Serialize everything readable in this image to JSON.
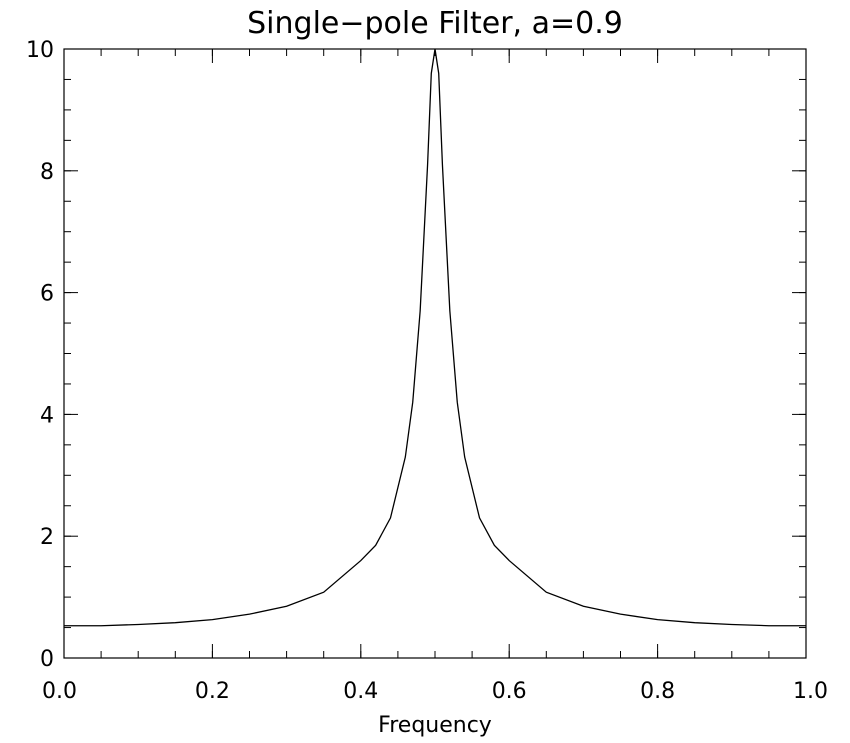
{
  "chart_data": {
    "type": "line",
    "title": "Single−pole Filter, a=0.9",
    "xlabel": "Frequency",
    "ylabel": "",
    "xlim": [
      0.0,
      1.0
    ],
    "ylim": [
      0,
      10
    ],
    "x_ticks": [
      0.0,
      0.2,
      0.4,
      0.6,
      0.8,
      1.0
    ],
    "x_tick_labels": [
      "0.0",
      "0.2",
      "0.4",
      "0.6",
      "0.8",
      "1.0"
    ],
    "y_ticks": [
      0,
      2,
      4,
      6,
      8,
      10
    ],
    "y_tick_labels": [
      "0",
      "2",
      "4",
      "6",
      "8",
      "10"
    ],
    "x_minor_step": 0.05,
    "y_minor_step": 0.5,
    "grid": false,
    "line_color": "#000000",
    "series": [
      {
        "x": [
          0.0,
          0.05,
          0.1,
          0.15,
          0.2,
          0.25,
          0.3,
          0.35,
          0.4,
          0.42,
          0.44,
          0.46,
          0.47,
          0.48,
          0.49,
          0.495,
          0.5,
          0.505,
          0.51,
          0.52,
          0.53,
          0.54,
          0.56,
          0.58,
          0.6,
          0.65,
          0.7,
          0.75,
          0.8,
          0.85,
          0.9,
          0.95,
          1.0
        ],
        "y": [
          0.53,
          0.53,
          0.55,
          0.58,
          0.63,
          0.72,
          0.85,
          1.08,
          1.6,
          1.85,
          2.3,
          3.3,
          4.2,
          5.7,
          8.1,
          9.6,
          10.0,
          9.6,
          8.1,
          5.7,
          4.2,
          3.3,
          2.3,
          1.85,
          1.6,
          1.08,
          0.85,
          0.72,
          0.63,
          0.58,
          0.55,
          0.53,
          0.53
        ]
      }
    ]
  }
}
